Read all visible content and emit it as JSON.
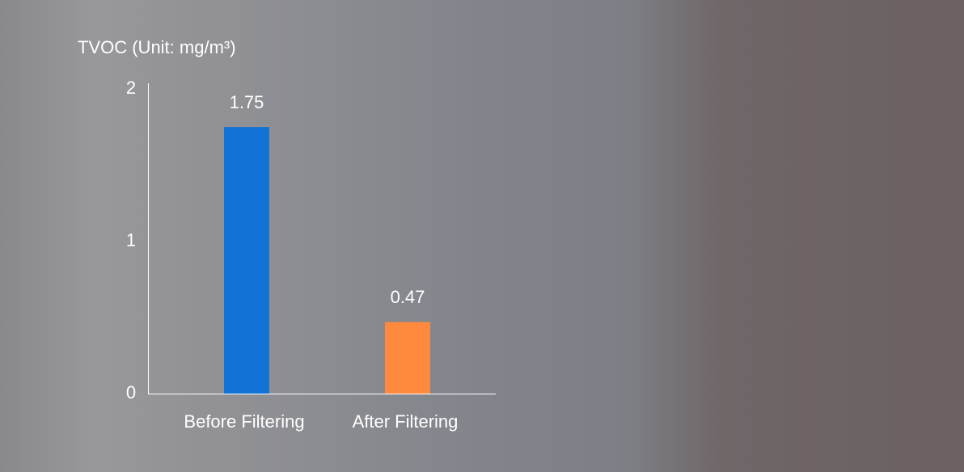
{
  "chart_data": {
    "type": "bar",
    "title": "TVOC (Unit: mg/m³)",
    "categories": [
      "Before Filtering",
      "After Filtering"
    ],
    "series": [
      {
        "name": "TVOC",
        "colors": [
          "#1273d6",
          "#ff8a3d"
        ],
        "values": [
          1.75,
          0.47
        ]
      }
    ],
    "ylim": [
      0,
      2
    ],
    "yticks": [
      0,
      1,
      2
    ],
    "grid": false
  }
}
